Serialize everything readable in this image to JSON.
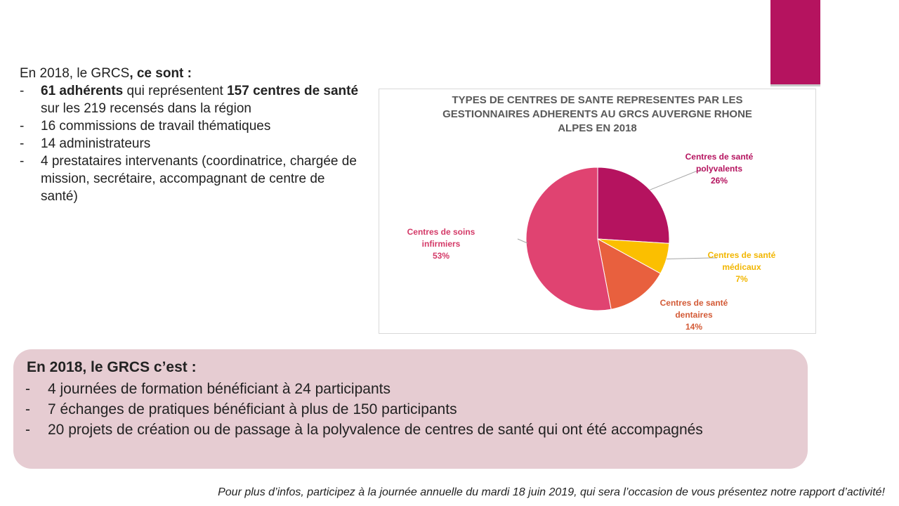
{
  "intro": {
    "l1_a": "En 2018, le GRCS",
    "l1_b": ", ce sont :",
    "items": [
      {
        "b1": "61 adhérents",
        "t1": " qui représentent ",
        "b2": "157 centres de santé",
        "t2": " sur les 219 recensés dans la région"
      },
      {
        "text": "16 commissions de travail thématiques"
      },
      {
        "text": "14 administrateurs"
      },
      {
        "text": "4 prestataires intervenants (coordinatrice, chargée de mission, secrétaire, accompagnant de centre de santé)"
      }
    ],
    "dash": "-"
  },
  "chart_data": {
    "type": "pie",
    "title": "TYPES DE CENTRES DE SANTE REPRESENTES PAR LES GESTIONNAIRES ADHERENTS AU GRCS AUVERGNE RHONE ALPES EN 2018",
    "title_lines": [
      "TYPES DE CENTRES DE SANTE REPRESENTES PAR LES",
      "GESTIONNAIRES ADHERENTS AU GRCS AUVERGNE RHONE",
      "ALPES EN 2018"
    ],
    "slices": [
      {
        "label": "Centres de santé polyvalents",
        "label_lines": [
          "Centres de santé",
          "polyvalents"
        ],
        "value": 26,
        "pct_label": "26%",
        "color": "#b5135f"
      },
      {
        "label": "Centres de santé médicaux",
        "label_lines": [
          "Centres de santé",
          "médicaux"
        ],
        "value": 7,
        "pct_label": "7%",
        "color": "#fbbf00"
      },
      {
        "label": "Centres de santé dentaires",
        "label_lines": [
          "Centres de santé",
          "dentaires"
        ],
        "value": 14,
        "pct_label": "14%",
        "color": "#e8603e"
      },
      {
        "label": "Centres de soins infirmiers",
        "label_lines": [
          "Centres de soins",
          "infirmiers"
        ],
        "value": 53,
        "pct_label": "53%",
        "color": "#e04371"
      }
    ],
    "label_colors": [
      "#b5135f",
      "#f2b600",
      "#d35a36",
      "#d43a68"
    ]
  },
  "summary": {
    "heading": "En 2018, le GRCS c’est :",
    "items": [
      "4 journées de formation bénéficiant à 24 participants",
      "7 échanges de pratiques bénéficiant à plus de 150 participants",
      "20 projets de création ou de passage à la polyvalence de centres de santé qui ont été accompagnés"
    ]
  },
  "footer": "Pour plus d’infos, participez à la journée annuelle du mardi 18 juin 2019, qui sera l’occasion de vous présentez notre rapport d’activité!"
}
